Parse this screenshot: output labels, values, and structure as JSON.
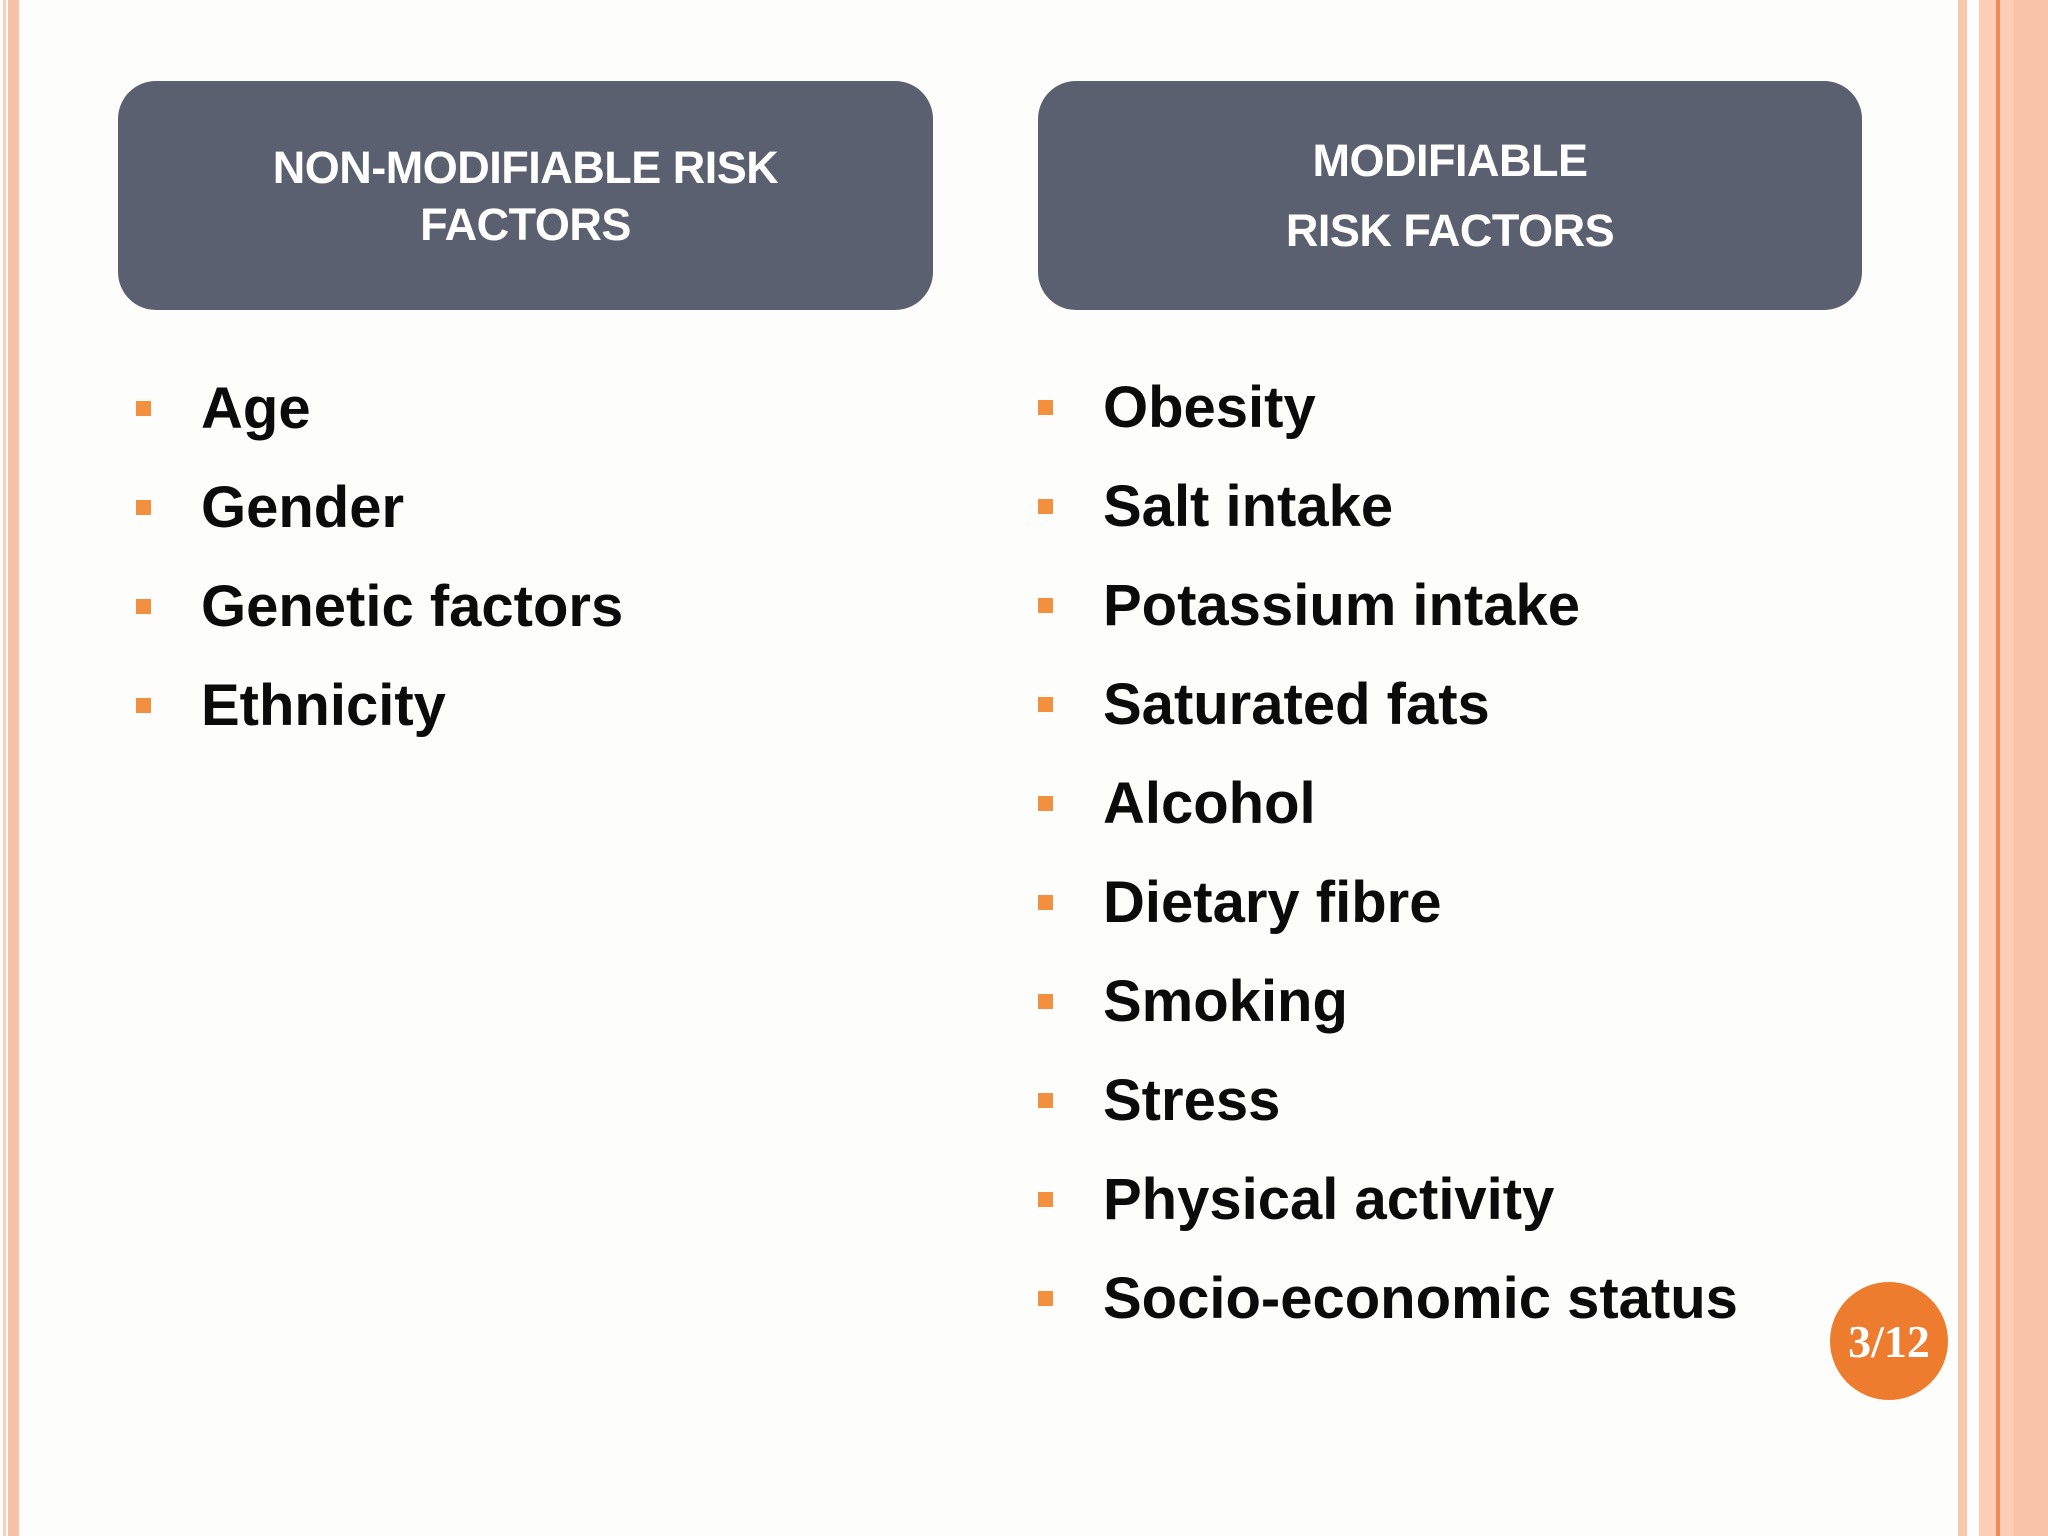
{
  "slide": {
    "columns": [
      {
        "header_lines": [
          "NON-MODIFIABLE RISK",
          "FACTORS"
        ],
        "items": [
          "Age",
          "Gender",
          "Genetic factors",
          "Ethnicity"
        ]
      },
      {
        "header_lines": [
          "MODIFIABLE",
          "RISK FACTORS"
        ],
        "items": [
          "Obesity",
          "Salt intake",
          "Potassium intake",
          "Saturated fats",
          "Alcohol",
          "Dietary fibre",
          "Smoking",
          "Stress",
          "Physical activity",
          "Socio-economic status"
        ]
      }
    ],
    "page_badge": "3/12",
    "colors": {
      "header_bg": "#5a6070",
      "header_text": "#ffffff",
      "bullet": "#f2903f",
      "badge_bg": "#ed7c2f",
      "badge_text": "#ffffff",
      "body_text": "#0b0b0b",
      "background": "#fdfdfb",
      "stripe_peach_light": "#f8d2c0",
      "stripe_peach": "#f7c2a6",
      "stripe_band": "#fbceb5",
      "stripe_accent_line": "#eb8c50"
    }
  }
}
